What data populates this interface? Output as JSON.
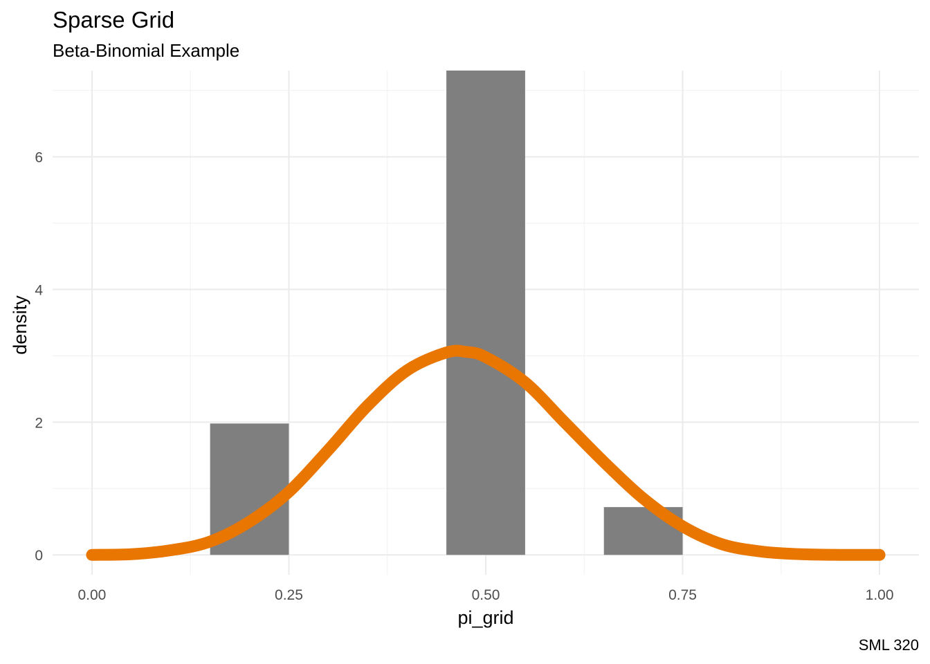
{
  "chart_data": {
    "type": "bar",
    "title": "Sparse Grid",
    "subtitle": "Beta-Binomial Example",
    "caption": "SML 320",
    "xlabel": "pi_grid",
    "ylabel": "density",
    "xlim": [
      -0.05,
      1.05
    ],
    "ylim": [
      -0.3,
      7.3
    ],
    "x_ticks": [
      0,
      0.25,
      0.5,
      0.75,
      1.0
    ],
    "x_tick_labels": [
      "0.00",
      "0.25",
      "0.50",
      "0.75",
      "1.00"
    ],
    "y_ticks": [
      0,
      2,
      4,
      6
    ],
    "y_tick_labels": [
      "0",
      "2",
      "4",
      "6"
    ],
    "grid": true,
    "bars": {
      "color": "#7f7f7f",
      "x": [
        0.2,
        0.5,
        0.7
      ],
      "width": 0.1,
      "values": [
        1.98,
        7.3,
        0.72
      ]
    },
    "curve": {
      "color": "#e87600",
      "distribution": "Beta(5.4, 6.3) density",
      "x": [
        0,
        0.05,
        0.1,
        0.15,
        0.2,
        0.25,
        0.3,
        0.35,
        0.4,
        0.45,
        0.475,
        0.5,
        0.55,
        0.6,
        0.65,
        0.7,
        0.75,
        0.8,
        0.85,
        0.9,
        0.95,
        1.0
      ],
      "y": [
        0,
        0.01,
        0.07,
        0.2,
        0.5,
        0.95,
        1.58,
        2.25,
        2.78,
        3.05,
        3.06,
        2.98,
        2.6,
        2.0,
        1.4,
        0.85,
        0.43,
        0.16,
        0.05,
        0.01,
        0.0,
        0
      ]
    }
  }
}
